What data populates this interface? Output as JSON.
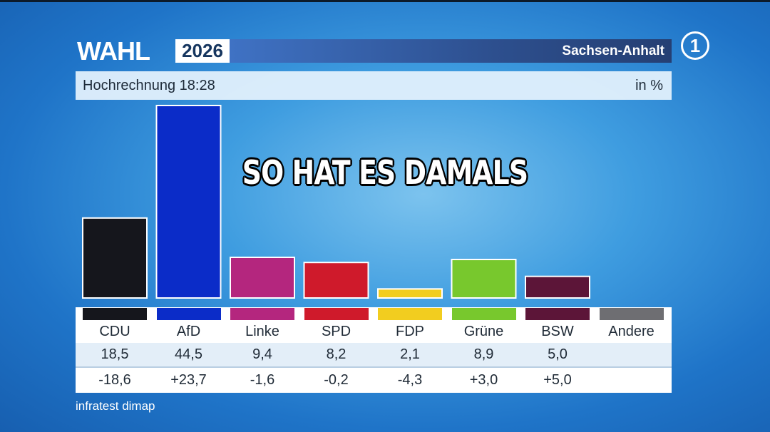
{
  "header": {
    "brand": "WAHL",
    "year": "2026",
    "region": "Sachsen-Anhalt",
    "broadcaster_logo": "1"
  },
  "subheader": {
    "left": "Hochrechnung 18:28",
    "right": "in %"
  },
  "overlay_caption": "SO HAT ES DAMALS",
  "source": "infratest dimap",
  "chart_data": {
    "type": "bar",
    "title": "",
    "unit": "in %",
    "categories": [
      "CDU",
      "AfD",
      "Linke",
      "SPD",
      "FDP",
      "Grüne",
      "BSW",
      "Andere"
    ],
    "series": [
      {
        "values": [
          18.5,
          44.5,
          9.4,
          8.2,
          2.1,
          8.9,
          5.0,
          null
        ]
      }
    ],
    "value_labels": [
      "18,5",
      "44,5",
      "9,4",
      "8,2",
      "2,1",
      "8,9",
      "5,0",
      ""
    ],
    "diff_labels": [
      "-18,6",
      "+23,7",
      "-1,6",
      "-0,2",
      "-4,3",
      "+3,0",
      "+5,0",
      ""
    ],
    "colors": [
      "#15161c",
      "#0b2cc8",
      "#b4267e",
      "#cf1a2b",
      "#f2cd1f",
      "#78c82d",
      "#5c1538",
      "#6e6e72"
    ],
    "ylim": [
      0,
      44.5
    ],
    "grid": false,
    "legend": "none"
  }
}
